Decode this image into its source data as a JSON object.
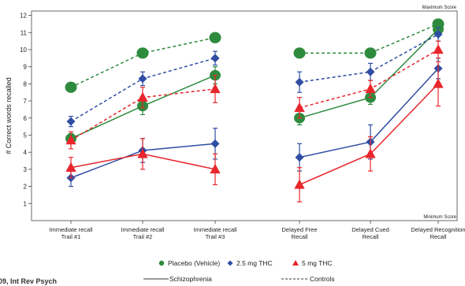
{
  "chart_data": {
    "type": "line",
    "ylabel": "# Correct words recalled",
    "ylim": [
      0,
      12
    ],
    "yticks": [
      1,
      2,
      3,
      4,
      5,
      6,
      7,
      8,
      9,
      10,
      11,
      12
    ],
    "categories": [
      [
        "Immediate recall",
        "Trail #1"
      ],
      [
        "Immediate recall",
        "Trail #2"
      ],
      [
        "Immediate recall",
        "Trail #3"
      ],
      [
        "Delayed Free",
        "Recall"
      ],
      [
        "Delayed Cued",
        "Recall"
      ],
      [
        "Delayed Recognition",
        "Recall"
      ]
    ],
    "max_score_label": "Maximum Score",
    "min_score_label": "Minimum Score",
    "groups": [
      [
        0,
        1,
        2
      ],
      [
        3,
        4,
        5
      ]
    ],
    "series": [
      {
        "name": "Placebo (Vehicle)",
        "group": "Schizophrenia",
        "color": "#2e8b3e",
        "marker": "circle",
        "dashed": false,
        "values": [
          4.8,
          6.7,
          8.5,
          6.0,
          7.2,
          11.2
        ],
        "err": [
          0.3,
          0.5,
          0.5,
          0.4,
          0.4,
          0.3
        ]
      },
      {
        "name": "2.5 mg THC",
        "group": "Schizophrenia",
        "color": "#2f4ea3",
        "marker": "diamond",
        "dashed": false,
        "values": [
          2.5,
          4.1,
          4.5,
          3.7,
          4.6,
          8.9
        ],
        "err": [
          0.5,
          0.7,
          0.9,
          0.8,
          1.0,
          0.6
        ]
      },
      {
        "name": "5 mg THC",
        "group": "Schizophrenia",
        "color": "#e8262c",
        "marker": "triangle",
        "dashed": false,
        "values": [
          3.1,
          3.9,
          3.0,
          2.1,
          3.9,
          8.0
        ],
        "err": [
          0.6,
          0.9,
          0.9,
          1.0,
          1.0,
          1.3
        ]
      },
      {
        "name": "Placebo (Vehicle)",
        "group": "Controls",
        "color": "#2e8b3e",
        "marker": "circle",
        "dashed": true,
        "values": [
          7.8,
          9.8,
          10.7,
          9.8,
          9.8,
          11.5
        ],
        "err": [
          0,
          0,
          0,
          0,
          0,
          0
        ]
      },
      {
        "name": "2.5 mg THC",
        "group": "Controls",
        "color": "#2f4ea3",
        "marker": "diamond",
        "dashed": true,
        "values": [
          5.8,
          8.3,
          9.5,
          8.1,
          8.7,
          10.9
        ],
        "err": [
          0.3,
          0.4,
          0.4,
          0.6,
          0.5,
          0.4
        ]
      },
      {
        "name": "5 mg THC",
        "group": "Controls",
        "color": "#e8262c",
        "marker": "triangle",
        "dashed": true,
        "values": [
          4.7,
          7.2,
          7.7,
          6.6,
          7.7,
          10.0
        ],
        "err": [
          0.5,
          0.6,
          0.8,
          0.6,
          0.5,
          0.5
        ]
      }
    ],
    "legend": {
      "items": [
        {
          "label": "Placebo (Vehicle)",
          "color": "#2e8b3e",
          "marker": "circle"
        },
        {
          "label": "2.5 mg THC",
          "color": "#2f4ea3",
          "marker": "diamond"
        },
        {
          "label": "5 mg THC",
          "color": "#e8262c",
          "marker": "triangle"
        }
      ],
      "line_styles": [
        {
          "label": "Schizophrenia",
          "dashed": false
        },
        {
          "label": "Controls",
          "dashed": true
        }
      ]
    }
  },
  "source_fragment": "09, Int Rev Psych"
}
